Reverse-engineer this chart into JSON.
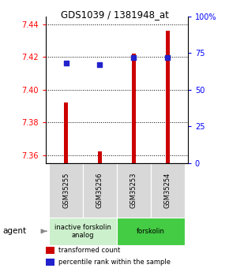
{
  "title": "GDS1039 / 1381948_at",
  "samples": [
    "GSM35255",
    "GSM35256",
    "GSM35253",
    "GSM35254"
  ],
  "transformed_counts": [
    7.392,
    7.362,
    7.422,
    7.436
  ],
  "percentile_ranks": [
    68,
    67,
    72,
    72
  ],
  "ylim_left": [
    7.355,
    7.445
  ],
  "ylim_right": [
    0,
    100
  ],
  "yticks_left": [
    7.36,
    7.38,
    7.4,
    7.42,
    7.44
  ],
  "yticks_right": [
    0,
    25,
    50,
    75,
    100
  ],
  "groups": [
    {
      "label": "inactive forskolin\nanalog",
      "samples": [
        0,
        1
      ],
      "color": "#ccf0cc"
    },
    {
      "label": "forskolin",
      "samples": [
        2,
        3
      ],
      "color": "#44cc44"
    }
  ],
  "bar_color": "#cc0000",
  "dot_color": "#2222cc",
  "bar_width": 0.12,
  "base_value": 7.355,
  "legend_items": [
    {
      "label": "transformed count",
      "color": "#cc0000"
    },
    {
      "label": "percentile rank within the sample",
      "color": "#2222cc"
    }
  ]
}
